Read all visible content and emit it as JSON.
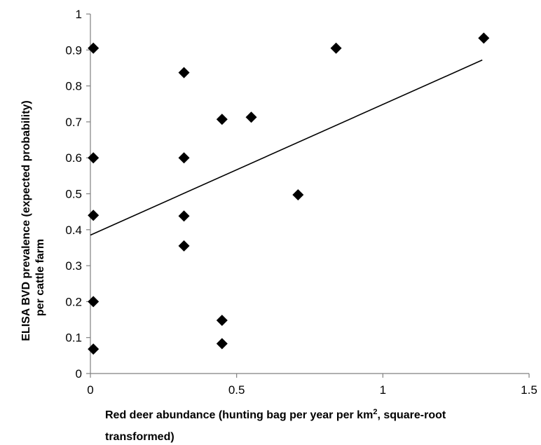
{
  "chart_data": {
    "type": "scatter",
    "xlabel_parts": [
      "Red deer abundance (hunting bag per year per km",
      "2",
      ", square-root"
    ],
    "xlabel_line2": "transformed)",
    "ylabel_line1": "ELISA BVD prevalence (expected probability)",
    "ylabel_line2": "per cattle farm",
    "xlim": [
      0,
      1.5
    ],
    "ylim": [
      0,
      1
    ],
    "x_ticks": [
      0,
      0.5,
      1,
      1.5
    ],
    "x_tick_labels": [
      "0",
      "0.5",
      "1",
      "1.5"
    ],
    "y_ticks": [
      0,
      0.1,
      0.2,
      0.3,
      0.4,
      0.5,
      0.6,
      0.7,
      0.8,
      0.9,
      1
    ],
    "y_tick_labels": [
      "0",
      "0.1",
      "0.2",
      "0.3",
      "0.4",
      "0.5",
      "0.6",
      "0.7",
      "0.8",
      "0.9",
      "1"
    ],
    "grid": false,
    "legend": "none",
    "marker": "diamond",
    "series": [
      {
        "points": [
          {
            "x": 0.01,
            "y": 0.905
          },
          {
            "x": 0.01,
            "y": 0.6
          },
          {
            "x": 0.01,
            "y": 0.44
          },
          {
            "x": 0.01,
            "y": 0.2
          },
          {
            "x": 0.01,
            "y": 0.068
          },
          {
            "x": 0.32,
            "y": 0.837
          },
          {
            "x": 0.32,
            "y": 0.6
          },
          {
            "x": 0.32,
            "y": 0.438
          },
          {
            "x": 0.32,
            "y": 0.355
          },
          {
            "x": 0.45,
            "y": 0.707
          },
          {
            "x": 0.45,
            "y": 0.148
          },
          {
            "x": 0.45,
            "y": 0.083
          },
          {
            "x": 0.55,
            "y": 0.713
          },
          {
            "x": 0.71,
            "y": 0.497
          },
          {
            "x": 0.84,
            "y": 0.905
          },
          {
            "x": 1.345,
            "y": 0.933
          }
        ]
      }
    ],
    "trendline": {
      "x_start": 0.0,
      "y_start": 0.385,
      "x_end": 1.34,
      "y_end": 0.872
    }
  }
}
